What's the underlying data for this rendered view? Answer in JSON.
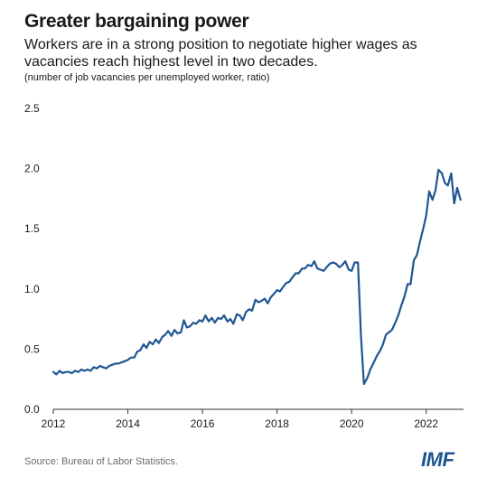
{
  "header": {
    "title": "Greater bargaining power",
    "subtitle": "Workers are in a strong position to negotiate higher wages as vacancies reach highest level in two decades.",
    "unit_note": "(number of job vacancies per unemployed worker, ratio)"
  },
  "footer": {
    "source": "Source: Bureau of Labor Statistics.",
    "logo": "IMF"
  },
  "colors": {
    "line": "#1f5691",
    "axis": "#333333",
    "text": "#1a1a1a",
    "logo": "#1f5691"
  },
  "chart_data": {
    "type": "line",
    "title": "Greater bargaining power",
    "ylabel": "",
    "xlabel": "",
    "xlim": [
      2012.0,
      2023.0
    ],
    "ylim": [
      0.0,
      2.5
    ],
    "x_ticks": [
      2012,
      2014,
      2016,
      2018,
      2020,
      2022
    ],
    "x_tick_labels": [
      "2012",
      "2014",
      "2016",
      "2018",
      "2020",
      "2022"
    ],
    "y_ticks": [
      0.0,
      0.5,
      1.0,
      1.5,
      2.0,
      2.5
    ],
    "y_tick_labels": [
      "0.0",
      "0.5",
      "1.0",
      "1.5",
      "2.0",
      "2.5"
    ],
    "grid": false,
    "series": [
      {
        "name": "",
        "x": [
          2012.0,
          2012.08,
          2012.17,
          2012.25,
          2012.33,
          2012.42,
          2012.5,
          2012.58,
          2012.67,
          2012.75,
          2012.83,
          2012.92,
          2013.0,
          2013.08,
          2013.17,
          2013.25,
          2013.33,
          2013.42,
          2013.5,
          2013.58,
          2013.67,
          2013.75,
          2013.83,
          2013.92,
          2014.0,
          2014.08,
          2014.17,
          2014.25,
          2014.33,
          2014.42,
          2014.5,
          2014.58,
          2014.67,
          2014.75,
          2014.83,
          2014.92,
          2015.0,
          2015.08,
          2015.17,
          2015.25,
          2015.33,
          2015.42,
          2015.5,
          2015.58,
          2015.67,
          2015.75,
          2015.83,
          2015.92,
          2016.0,
          2016.08,
          2016.17,
          2016.25,
          2016.33,
          2016.42,
          2016.5,
          2016.58,
          2016.67,
          2016.75,
          2016.83,
          2016.92,
          2017.0,
          2017.08,
          2017.17,
          2017.25,
          2017.33,
          2017.42,
          2017.5,
          2017.58,
          2017.67,
          2017.75,
          2017.83,
          2017.92,
          2018.0,
          2018.08,
          2018.17,
          2018.25,
          2018.33,
          2018.42,
          2018.5,
          2018.58,
          2018.67,
          2018.75,
          2018.83,
          2018.92,
          2019.0,
          2019.08,
          2019.17,
          2019.25,
          2019.33,
          2019.42,
          2019.5,
          2019.58,
          2019.67,
          2019.75,
          2019.83,
          2019.92,
          2020.0,
          2020.08,
          2020.17,
          2020.25,
          2020.33,
          2020.42,
          2020.5,
          2020.58,
          2020.67,
          2020.75,
          2020.83,
          2020.92,
          2021.0,
          2021.08,
          2021.17,
          2021.25,
          2021.33,
          2021.42,
          2021.5,
          2021.58,
          2021.67,
          2021.75,
          2021.83,
          2021.92,
          2022.0,
          2022.08,
          2022.17,
          2022.25,
          2022.33,
          2022.42,
          2022.5,
          2022.58,
          2022.67,
          2022.75,
          2022.83,
          2022.92
        ],
        "y": [
          0.31,
          0.29,
          0.32,
          0.3,
          0.31,
          0.31,
          0.3,
          0.32,
          0.31,
          0.33,
          0.32,
          0.33,
          0.32,
          0.35,
          0.34,
          0.36,
          0.35,
          0.34,
          0.36,
          0.37,
          0.38,
          0.38,
          0.39,
          0.4,
          0.41,
          0.43,
          0.43,
          0.48,
          0.49,
          0.54,
          0.51,
          0.56,
          0.54,
          0.58,
          0.55,
          0.6,
          0.62,
          0.65,
          0.61,
          0.66,
          0.63,
          0.64,
          0.74,
          0.68,
          0.69,
          0.72,
          0.71,
          0.74,
          0.73,
          0.78,
          0.73,
          0.76,
          0.72,
          0.76,
          0.75,
          0.78,
          0.73,
          0.75,
          0.71,
          0.79,
          0.78,
          0.74,
          0.81,
          0.83,
          0.82,
          0.91,
          0.89,
          0.9,
          0.92,
          0.88,
          0.93,
          0.96,
          0.99,
          0.98,
          1.02,
          1.05,
          1.06,
          1.1,
          1.13,
          1.13,
          1.17,
          1.17,
          1.2,
          1.19,
          1.23,
          1.17,
          1.16,
          1.15,
          1.18,
          1.21,
          1.22,
          1.21,
          1.18,
          1.2,
          1.23,
          1.16,
          1.15,
          1.22,
          1.22,
          0.61,
          0.21,
          0.26,
          0.33,
          0.38,
          0.44,
          0.48,
          0.53,
          0.62,
          0.64,
          0.66,
          0.72,
          0.78,
          0.86,
          0.94,
          1.04,
          1.04,
          1.24,
          1.28,
          1.39,
          1.5,
          1.61,
          1.81,
          1.74,
          1.82,
          1.99,
          1.96,
          1.88,
          1.86,
          1.96,
          1.71,
          1.84,
          1.74
        ]
      }
    ]
  }
}
